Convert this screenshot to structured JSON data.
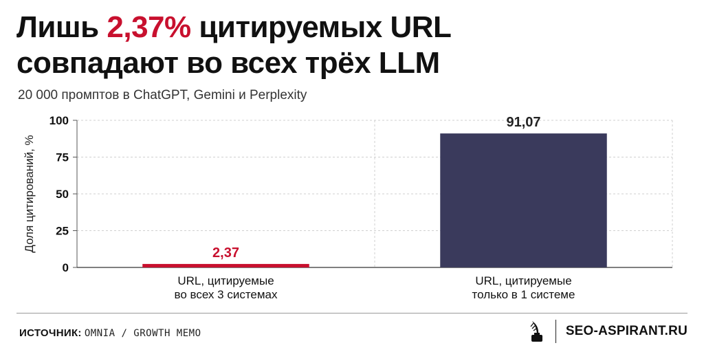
{
  "header": {
    "title_pre": "Лишь ",
    "title_highlight": "2,37%",
    "title_post": " цитируемых URL",
    "title_line2": "совпадают во всех трёх LLM",
    "subtitle": "20 000 промптов в ChatGPT, Gemini и Perplexity"
  },
  "chart_data": {
    "type": "bar",
    "categories": [
      [
        "URL, цитируемые",
        "во всех 3 системах"
      ],
      [
        "URL, цитируемые",
        "только в 1 системе"
      ]
    ],
    "values": [
      2.37,
      91.07
    ],
    "value_labels": [
      "2,37",
      "91,07"
    ],
    "colors": [
      "#c8102e",
      "#3a3a5c"
    ],
    "value_label_colors": [
      "#c8102e",
      "#222222"
    ],
    "ylabel": "Доля цитирований, %",
    "ylim": [
      0,
      100
    ],
    "yticks": [
      0,
      25,
      50,
      75,
      100
    ],
    "grid": true
  },
  "footer": {
    "source_label": "ИСТОЧНИК:",
    "source_value": "OMNIA / GROWTH MEMO",
    "brand": "SEO-ASPIRANT.RU",
    "brand_icon": "inkwell-quill-icon"
  }
}
